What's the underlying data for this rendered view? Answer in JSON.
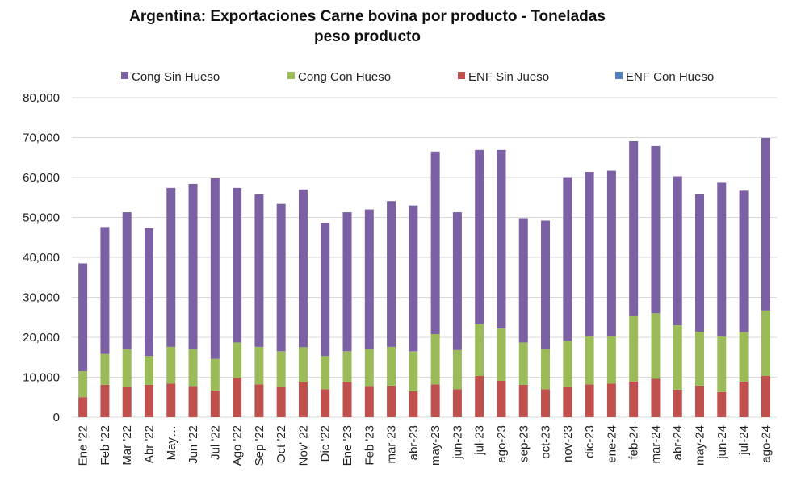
{
  "chart_data": {
    "type": "bar",
    "stacked": true,
    "title": "Argentina: Exportaciones Carne bovina por producto - Toneladas peso producto",
    "title_lines": [
      "Argentina: Exportaciones Carne bovina por producto - Toneladas",
      "peso producto"
    ],
    "xlabel": "",
    "ylabel": "",
    "ylim": [
      0,
      80000
    ],
    "yticks": [
      0,
      10000,
      20000,
      30000,
      40000,
      50000,
      60000,
      70000,
      80000
    ],
    "ytick_labels": [
      "0",
      "10,000",
      "20,000",
      "30,000",
      "40,000",
      "50,000",
      "60,000",
      "70,000",
      "80,000"
    ],
    "grid": true,
    "legend_position": "top",
    "categories": [
      "Ene '22",
      "Feb '22",
      "Mar '22",
      "Abr '22",
      "May…",
      "Jun '22",
      "Jul '22",
      "Ago '22",
      "Sep '22",
      "Oct '22",
      "Nov' 22",
      "Dic '22",
      "Ene '23",
      "Feb '23",
      "mar-23",
      "abr-23",
      "may-23",
      "jun-23",
      "jul-23",
      "ago-23",
      "sep-23",
      "oct-23",
      "nov-23",
      "dic-23",
      "ene-24",
      "feb-24",
      "mar-24",
      "abr-24",
      "may-24",
      "jun-24",
      "jul-24",
      "ago-24"
    ],
    "series": [
      {
        "name": "ENF Con Hueso",
        "color": "#4f81bd",
        "values": [
          0,
          0,
          0,
          0,
          0,
          0,
          0,
          0,
          0,
          0,
          0,
          0,
          0,
          0,
          0,
          0,
          0,
          0,
          0,
          0,
          0,
          0,
          0,
          0,
          0,
          0,
          0,
          0,
          0,
          0,
          0,
          0
        ]
      },
      {
        "name": "ENF Sin Jueso",
        "color": "#c0504d",
        "values": [
          5000,
          8100,
          7500,
          8100,
          8400,
          7800,
          6700,
          9800,
          8200,
          7500,
          8700,
          7000,
          8800,
          7800,
          7900,
          6500,
          8200,
          7000,
          10300,
          9100,
          8100,
          7000,
          7500,
          8200,
          8400,
          8900,
          9600,
          6900,
          7900,
          6300,
          8900,
          10300
        ]
      },
      {
        "name": "Cong Con Hueso",
        "color": "#9bbb59",
        "values": [
          6500,
          7700,
          9500,
          7200,
          9200,
          9300,
          7900,
          8900,
          9400,
          9000,
          8800,
          8300,
          7700,
          9300,
          9700,
          10000,
          12600,
          9800,
          13000,
          13100,
          10600,
          10100,
          11600,
          12000,
          11800,
          16400,
          16400,
          16100,
          13500,
          13900,
          12400,
          16400
        ]
      },
      {
        "name": "Cong Sin Hueso",
        "color": "#7b60a4",
        "values": [
          27000,
          31800,
          34300,
          32000,
          39800,
          41300,
          45200,
          38700,
          38200,
          36900,
          39500,
          33400,
          34800,
          34900,
          36500,
          36500,
          45700,
          34500,
          43600,
          44700,
          31100,
          32100,
          41000,
          41200,
          41500,
          43800,
          41900,
          37300,
          34400,
          38500,
          35400,
          43200
        ]
      }
    ],
    "legend_order": [
      "Cong Sin Hueso",
      "Cong Con Hueso",
      "ENF Sin Jueso",
      "ENF Con Hueso"
    ]
  }
}
